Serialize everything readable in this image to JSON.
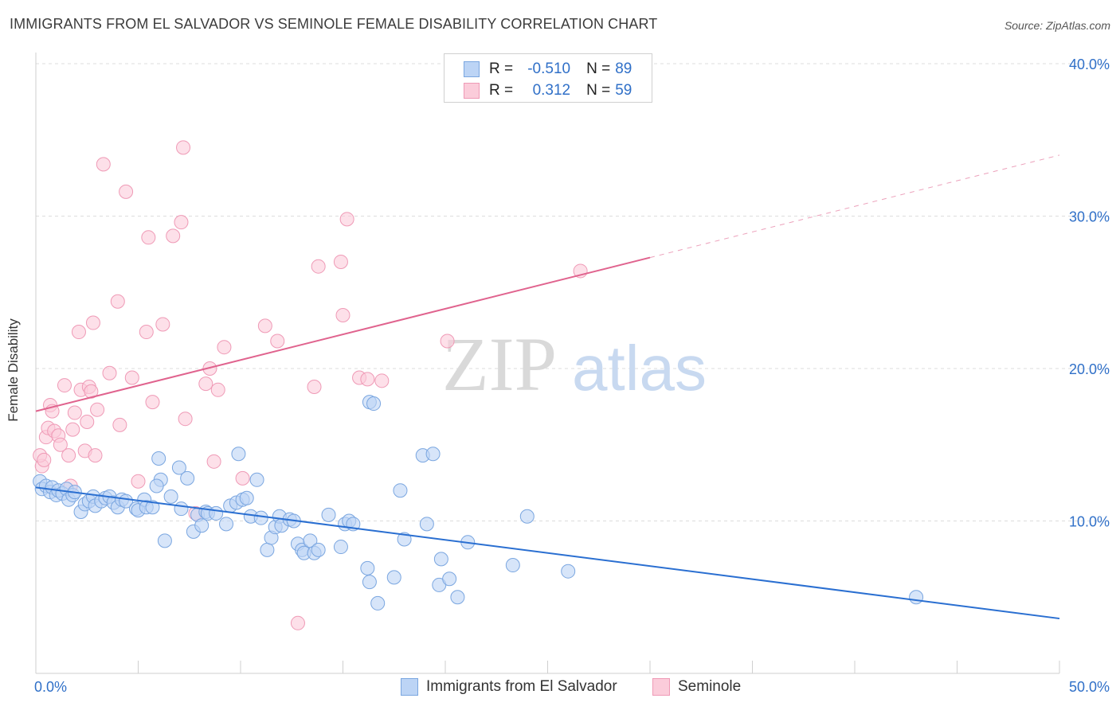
{
  "header": {
    "title": "IMMIGRANTS FROM EL SALVADOR VS SEMINOLE FEMALE DISABILITY CORRELATION CHART",
    "source": "Source: ZipAtlas.com"
  },
  "watermark": {
    "zip": "ZIP",
    "atlas": "atlas"
  },
  "legend": {
    "rows": [
      {
        "r_label": "R =",
        "r_value": "-0.510",
        "n_label": "N =",
        "n_value": "89"
      },
      {
        "r_label": "R =",
        "r_value": "0.312",
        "n_label": "N =",
        "n_value": "59"
      }
    ]
  },
  "colors": {
    "blue_fill": "#bcd4f5",
    "blue_stroke": "#7aa6e0",
    "blue_line": "#2a6fd1",
    "pink_fill": "#fbccda",
    "pink_stroke": "#ef9ab6",
    "pink_line": "#e0638e",
    "grid": "#dddddd",
    "axis_text": "#3070c8"
  },
  "chart_data": {
    "type": "scatter",
    "title": "IMMIGRANTS FROM EL SALVADOR VS SEMINOLE FEMALE DISABILITY CORRELATION CHART",
    "xlabel": "",
    "ylabel": "Female Disability",
    "xlim": [
      0,
      50
    ],
    "ylim": [
      0,
      40
    ],
    "x_tick_labels": [
      "0.0%",
      "50.0%"
    ],
    "y_ticks": [
      10,
      20,
      30,
      40
    ],
    "y_tick_labels": [
      "10.0%",
      "20.0%",
      "30.0%",
      "40.0%"
    ],
    "grid": true,
    "legend": [
      "Immigrants from El Salvador",
      "Seminole"
    ],
    "series": [
      {
        "name": "Immigrants from El Salvador",
        "r": -0.51,
        "n": 89,
        "trend": {
          "x": [
            0,
            50
          ],
          "y": [
            12.2,
            3.6
          ],
          "dashed_from": null
        },
        "points": [
          [
            0.2,
            12.6
          ],
          [
            0.3,
            12.1
          ],
          [
            0.5,
            12.3
          ],
          [
            0.7,
            11.9
          ],
          [
            0.8,
            12.2
          ],
          [
            1.0,
            11.7
          ],
          [
            1.1,
            12.0
          ],
          [
            1.3,
            11.8
          ],
          [
            1.5,
            12.1
          ],
          [
            1.6,
            11.4
          ],
          [
            1.8,
            11.7
          ],
          [
            1.9,
            11.9
          ],
          [
            2.2,
            10.6
          ],
          [
            2.4,
            11.1
          ],
          [
            2.6,
            11.3
          ],
          [
            2.8,
            11.6
          ],
          [
            2.9,
            11.0
          ],
          [
            3.2,
            11.3
          ],
          [
            3.4,
            11.5
          ],
          [
            3.6,
            11.6
          ],
          [
            3.8,
            11.2
          ],
          [
            4.0,
            10.9
          ],
          [
            4.2,
            11.4
          ],
          [
            4.4,
            11.3
          ],
          [
            4.9,
            10.8
          ],
          [
            5.0,
            10.7
          ],
          [
            5.3,
            11.4
          ],
          [
            5.4,
            10.9
          ],
          [
            5.7,
            10.9
          ],
          [
            6.0,
            14.1
          ],
          [
            6.1,
            12.7
          ],
          [
            6.3,
            8.7
          ],
          [
            5.9,
            12.3
          ],
          [
            6.6,
            11.6
          ],
          [
            7.0,
            13.5
          ],
          [
            7.1,
            10.8
          ],
          [
            7.4,
            12.8
          ],
          [
            7.7,
            9.3
          ],
          [
            7.9,
            10.4
          ],
          [
            8.1,
            9.7
          ],
          [
            8.3,
            10.6
          ],
          [
            8.4,
            10.5
          ],
          [
            8.8,
            10.5
          ],
          [
            9.3,
            9.8
          ],
          [
            9.5,
            11.0
          ],
          [
            9.8,
            11.2
          ],
          [
            9.9,
            14.4
          ],
          [
            10.1,
            11.4
          ],
          [
            10.3,
            11.5
          ],
          [
            10.5,
            10.3
          ],
          [
            10.8,
            12.7
          ],
          [
            11.0,
            10.2
          ],
          [
            11.3,
            8.1
          ],
          [
            11.5,
            8.9
          ],
          [
            11.7,
            9.6
          ],
          [
            11.9,
            10.3
          ],
          [
            12.0,
            9.7
          ],
          [
            12.4,
            10.1
          ],
          [
            12.6,
            10.0
          ],
          [
            12.8,
            8.5
          ],
          [
            13.0,
            8.1
          ],
          [
            13.1,
            7.9
          ],
          [
            13.4,
            8.7
          ],
          [
            13.6,
            7.9
          ],
          [
            13.8,
            8.1
          ],
          [
            14.3,
            10.4
          ],
          [
            14.9,
            8.3
          ],
          [
            15.1,
            9.8
          ],
          [
            15.3,
            10.0
          ],
          [
            15.5,
            9.8
          ],
          [
            16.3,
            17.8
          ],
          [
            16.5,
            17.7
          ],
          [
            16.2,
            6.9
          ],
          [
            16.3,
            6.0
          ],
          [
            16.7,
            4.6
          ],
          [
            17.5,
            6.3
          ],
          [
            17.8,
            12.0
          ],
          [
            18.0,
            8.8
          ],
          [
            18.9,
            14.3
          ],
          [
            19.1,
            9.8
          ],
          [
            19.4,
            14.4
          ],
          [
            19.7,
            5.8
          ],
          [
            19.8,
            7.5
          ],
          [
            20.2,
            6.2
          ],
          [
            20.6,
            5.0
          ],
          [
            21.1,
            8.6
          ],
          [
            23.3,
            7.1
          ],
          [
            24.0,
            10.3
          ],
          [
            26.0,
            6.7
          ],
          [
            43.0,
            5.0
          ]
        ]
      },
      {
        "name": "Seminole",
        "r": 0.312,
        "n": 59,
        "trend": {
          "x": [
            0,
            50
          ],
          "y": [
            17.2,
            34.0
          ],
          "dashed_from": 30
        },
        "points": [
          [
            0.3,
            13.6
          ],
          [
            0.2,
            14.3
          ],
          [
            0.4,
            14.0
          ],
          [
            0.5,
            15.5
          ],
          [
            0.6,
            16.1
          ],
          [
            0.7,
            17.6
          ],
          [
            0.8,
            17.2
          ],
          [
            0.9,
            15.9
          ],
          [
            1.1,
            15.6
          ],
          [
            1.2,
            15.0
          ],
          [
            1.4,
            18.9
          ],
          [
            1.6,
            14.3
          ],
          [
            1.7,
            12.3
          ],
          [
            1.8,
            16.0
          ],
          [
            1.9,
            17.1
          ],
          [
            2.1,
            22.4
          ],
          [
            2.2,
            18.6
          ],
          [
            2.4,
            14.6
          ],
          [
            2.5,
            16.5
          ],
          [
            2.6,
            18.8
          ],
          [
            2.7,
            18.5
          ],
          [
            2.8,
            23.0
          ],
          [
            2.9,
            14.3
          ],
          [
            3.0,
            17.3
          ],
          [
            3.3,
            33.4
          ],
          [
            3.6,
            19.7
          ],
          [
            4.0,
            24.4
          ],
          [
            4.1,
            16.3
          ],
          [
            4.4,
            31.6
          ],
          [
            4.7,
            19.4
          ],
          [
            5.0,
            12.6
          ],
          [
            5.4,
            22.4
          ],
          [
            5.5,
            28.6
          ],
          [
            5.7,
            17.8
          ],
          [
            6.2,
            22.9
          ],
          [
            6.7,
            28.7
          ],
          [
            7.1,
            29.6
          ],
          [
            7.2,
            34.5
          ],
          [
            7.3,
            16.7
          ],
          [
            7.8,
            10.5
          ],
          [
            8.3,
            19.0
          ],
          [
            8.5,
            20.0
          ],
          [
            8.7,
            13.9
          ],
          [
            8.9,
            18.6
          ],
          [
            9.2,
            21.4
          ],
          [
            10.1,
            12.8
          ],
          [
            11.2,
            22.8
          ],
          [
            11.8,
            21.8
          ],
          [
            12.8,
            3.3
          ],
          [
            13.6,
            18.8
          ],
          [
            13.8,
            26.7
          ],
          [
            14.9,
            27.0
          ],
          [
            15.0,
            23.5
          ],
          [
            15.2,
            29.8
          ],
          [
            15.8,
            19.4
          ],
          [
            16.2,
            19.3
          ],
          [
            16.9,
            19.2
          ],
          [
            20.1,
            21.8
          ],
          [
            26.6,
            26.4
          ]
        ]
      }
    ]
  }
}
